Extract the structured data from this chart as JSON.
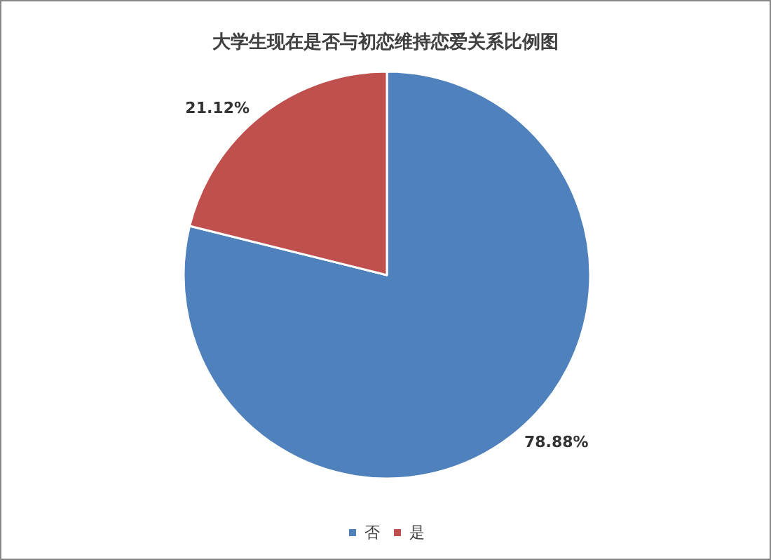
{
  "chart_data": {
    "type": "pie",
    "title": "大学生现在是否与初恋维持恋爱关系比例图",
    "categories": [
      "否",
      "是"
    ],
    "values": [
      78.88,
      21.12
    ],
    "colors": [
      "#4f81bd",
      "#c0504d"
    ],
    "value_labels": [
      "78.88%",
      "21.12%"
    ],
    "legend": "bottom"
  }
}
